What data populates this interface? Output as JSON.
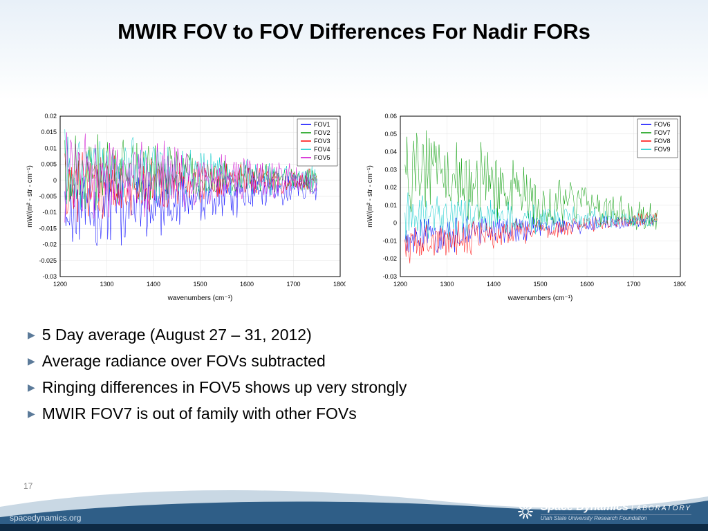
{
  "title": "MWIR FOV to FOV Differences For Nadir FORs",
  "page_number": "17",
  "footer_url": "spacedynamics.org",
  "logo": {
    "line1a": "Space Dynamics",
    "line1b": "LABORATORY",
    "line2": "Utah State University Research Foundation"
  },
  "bullets": [
    "5 Day average (August 27 – 31, 2012)",
    "Average radiance over FOVs subtracted",
    "Ringing differences in FOV5 shows up very strongly",
    "MWIR FOV7 is out of family with other FOVs"
  ],
  "bullet_color": "#5b7a99",
  "chart_common": {
    "xlabel": "wavenumbers (cm⁻¹)",
    "ylabel": "mW/(m² - str - cm⁻¹)",
    "xlim": [
      1200,
      1800
    ],
    "xtick_step": 100,
    "background": "#ffffff",
    "axis_color": "#000000",
    "grid_color": "#e0e0e0",
    "line_width": 0.5,
    "label_fontsize": 10,
    "tick_fontsize": 9,
    "legend_fontsize": 9,
    "legend_pos": "top-right"
  },
  "chart_left": {
    "type": "line",
    "ylim": [
      -0.03,
      0.02
    ],
    "ytick_step": 0.005,
    "x_data_range": [
      1210,
      1750
    ],
    "series": [
      {
        "name": "FOV1",
        "color": "#0000ff",
        "noise_center": -0.01,
        "noise_amp": 0.013,
        "trend_end": -0.002
      },
      {
        "name": "FOV2",
        "color": "#009900",
        "noise_center": 0.003,
        "noise_amp": 0.011,
        "trend_end": 0.0
      },
      {
        "name": "FOV3",
        "color": "#ff0000",
        "noise_center": -0.002,
        "noise_amp": 0.01,
        "trend_end": 0.0
      },
      {
        "name": "FOV4",
        "color": "#00c8c8",
        "noise_center": 0.004,
        "noise_amp": 0.012,
        "trend_end": 0.0
      },
      {
        "name": "FOV5",
        "color": "#cc00cc",
        "noise_center": 0.002,
        "noise_amp": 0.014,
        "trend_end": 0.0
      }
    ]
  },
  "chart_right": {
    "type": "line",
    "ylim": [
      -0.03,
      0.06
    ],
    "ytick_step": 0.01,
    "x_data_range": [
      1210,
      1750
    ],
    "series": [
      {
        "name": "FOV6",
        "color": "#0000ff",
        "noise_center": -0.008,
        "noise_amp": 0.01,
        "trend_end": 0.002
      },
      {
        "name": "FOV7",
        "color": "#009900",
        "noise_center": 0.03,
        "noise_amp": 0.025,
        "trend_end": 0.002
      },
      {
        "name": "FOV8",
        "color": "#ff0000",
        "noise_center": -0.012,
        "noise_amp": 0.01,
        "trend_end": 0.003
      },
      {
        "name": "FOV9",
        "color": "#00c8c8",
        "noise_center": 0.003,
        "noise_amp": 0.012,
        "trend_end": 0.002
      }
    ]
  },
  "footer_wave": {
    "light_color": "#c9d8e4",
    "dark_color": "#2f5e87",
    "bar_color": "#0e2a44"
  }
}
